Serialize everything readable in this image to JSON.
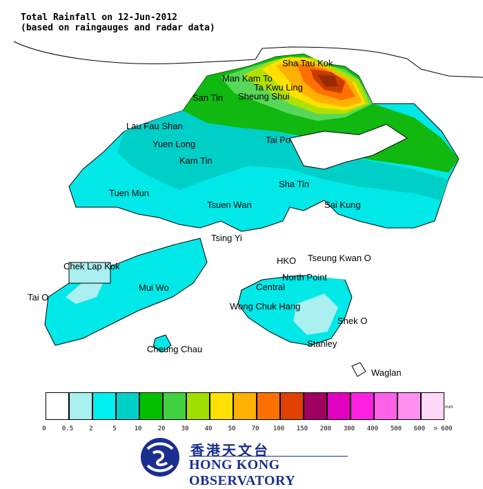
{
  "title": {
    "line1": "Total Rainfall on 12-Jun-2012",
    "line2": "(based on raingauges and radar data)"
  },
  "places": {
    "sha_tau_kok": "Sha Tau Kok",
    "man_kam_to": "Man Kam To",
    "ta_kwu_ling": "Ta Kwu Ling",
    "san_tin": "San Tin",
    "sheung_shui": "Sheung Shui",
    "lau_fau_shan": "Lau Fau Shan",
    "yuen_long": "Yuen Long",
    "tai_po": "Tai Po",
    "kam_tin": "Kam Tin",
    "sha_tin": "Sha Tin",
    "tuen_mun": "Tuen Mun",
    "tsuen_wan": "Tsuen Wan",
    "sai_kung": "Sai Kung",
    "tsing_yi": "Tsing Yi",
    "chek_lap_kok": "Chek Lap Kok",
    "hko": "HKO",
    "tseung_kwan_o": "Tseung Kwan O",
    "north_point": "North Point",
    "tai_o": "Tai O",
    "mui_wo": "Mui Wo",
    "central": "Central",
    "wong_chuk_hang": "Wong Chuk Hang",
    "shek_o": "Shek O",
    "stanley": "Stanley",
    "cheung_chau": "Cheung Chau",
    "waglan": "Waglan"
  },
  "legend": {
    "unit": "mm",
    "colors": [
      "#ffffff",
      "#aaf0f0",
      "#00f0f0",
      "#00d0c8",
      "#00c000",
      "#40d040",
      "#a0e000",
      "#ffe000",
      "#ffb000",
      "#ff7000",
      "#e04000",
      "#a00060",
      "#e000c0",
      "#ff20e0",
      "#ff60e8",
      "#ff90f0",
      "#ffd8f8"
    ],
    "ticks": [
      "0",
      "0.5",
      "2",
      "5",
      "10",
      "20",
      "30",
      "40",
      "50",
      "70",
      "100",
      "150",
      "200",
      "300",
      "400",
      "500",
      "600",
      "> 600"
    ]
  },
  "logo": {
    "chinese": "香港天文台",
    "english": "HONG KONG OBSERVATORY"
  }
}
